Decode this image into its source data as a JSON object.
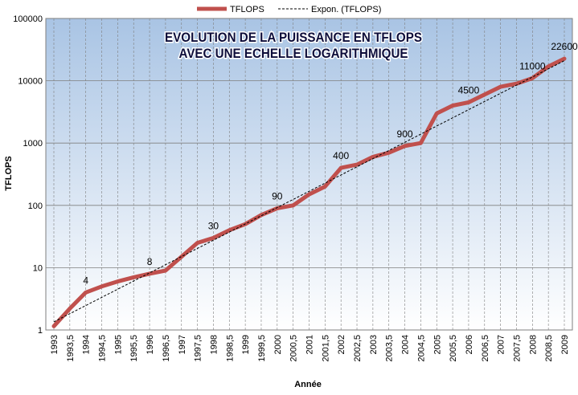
{
  "chart_data": {
    "type": "line",
    "title_line1": "EVOLUTION DE LA PUISSANCE EN TFLOPS",
    "title_line2": "AVEC UNE ECHELLE LOGARITHMIQUE",
    "xlabel": "Année",
    "ylabel": "TFLOPS",
    "yscale": "log",
    "ylim": [
      1,
      100000
    ],
    "xlim": [
      1993,
      2009
    ],
    "grid": true,
    "legend_position": "top",
    "y_ticks": [
      "1",
      "10",
      "100",
      "1000",
      "10000",
      "100000"
    ],
    "x_ticks": [
      "1993",
      "1993,5",
      "1994",
      "1994,5",
      "1995",
      "1995,5",
      "1996",
      "1996,5",
      "1997",
      "1997,5",
      "1998",
      "1998,5",
      "1999",
      "1999,5",
      "2000",
      "2000,5",
      "2001",
      "2001,5",
      "2002",
      "2002,5",
      "2003",
      "2003,5",
      "2004",
      "2004,5",
      "2005",
      "2005,5",
      "2006",
      "2006,5",
      "2007",
      "2007,5",
      "2008",
      "2008,5",
      "2009"
    ],
    "series": [
      {
        "name": "TFLOPS",
        "color": "#c0504d",
        "x": [
          1993,
          1993.5,
          1994,
          1994.5,
          1995,
          1995.5,
          1996,
          1996.5,
          1997,
          1997.5,
          1998,
          1998.5,
          1999,
          1999.5,
          2000,
          2000.5,
          2001,
          2001.5,
          2002,
          2002.5,
          2003,
          2003.5,
          2004,
          2004.5,
          2005,
          2005.5,
          2006,
          2006.5,
          2007,
          2007.5,
          2008,
          2008.5,
          2009
        ],
        "y": [
          1.15,
          2.2,
          4,
          5,
          6,
          7,
          8,
          9,
          15,
          25,
          30,
          40,
          50,
          70,
          90,
          100,
          150,
          200,
          400,
          450,
          600,
          700,
          900,
          1000,
          3000,
          4000,
          4500,
          6000,
          8000,
          9000,
          11000,
          17000,
          22600
        ]
      },
      {
        "name": "Expon. (TFLOPS)",
        "color": "#000000",
        "dashed": true,
        "x": [
          1993,
          2009
        ],
        "y": [
          1.35,
          21000
        ]
      }
    ],
    "data_labels": [
      {
        "x": 1994,
        "y": 4,
        "text": "4"
      },
      {
        "x": 1996,
        "y": 8,
        "text": "8"
      },
      {
        "x": 1998,
        "y": 30,
        "text": "30"
      },
      {
        "x": 2000,
        "y": 90,
        "text": "90"
      },
      {
        "x": 2002,
        "y": 400,
        "text": "400"
      },
      {
        "x": 2004,
        "y": 900,
        "text": "900"
      },
      {
        "x": 2006,
        "y": 4500,
        "text": "4500"
      },
      {
        "x": 2008,
        "y": 11000,
        "text": "11000"
      },
      {
        "x": 2009,
        "y": 22600,
        "text": "22600"
      }
    ],
    "colors": {
      "plot_top": "#a9c4e4",
      "plot_bottom": "#ffffff",
      "grid": "#7f7f7f",
      "title_text": "#0d0d3a"
    }
  }
}
